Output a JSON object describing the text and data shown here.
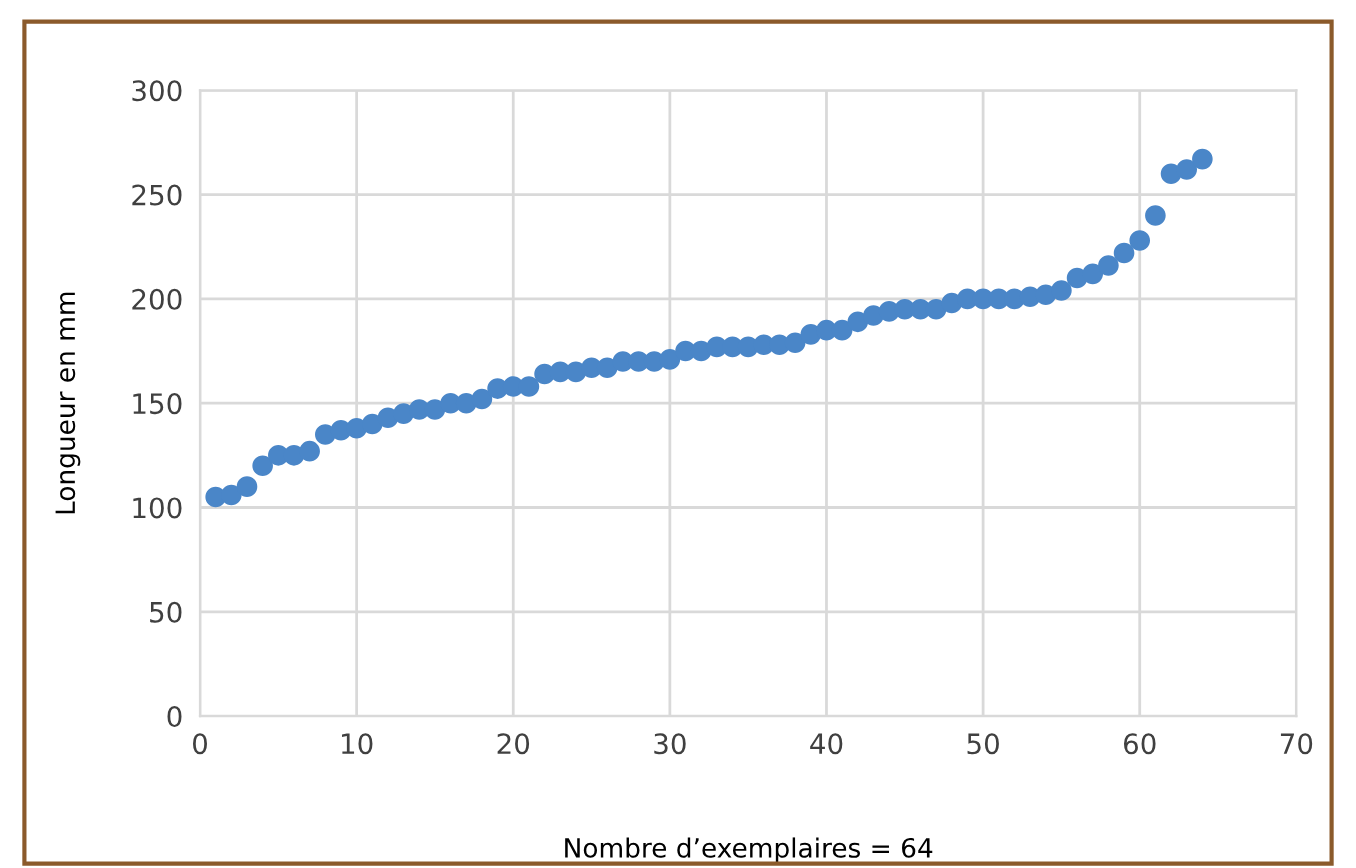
{
  "chart_data": {
    "type": "scatter",
    "xlabel": "Nombre d’exemplaires = 64",
    "ylabel": "Longueur en mm",
    "x": [
      1,
      2,
      3,
      4,
      5,
      6,
      7,
      8,
      9,
      10,
      11,
      12,
      13,
      14,
      15,
      16,
      17,
      18,
      19,
      20,
      21,
      22,
      23,
      24,
      25,
      26,
      27,
      28,
      29,
      30,
      31,
      32,
      33,
      34,
      35,
      36,
      37,
      38,
      39,
      40,
      41,
      42,
      43,
      44,
      45,
      46,
      47,
      48,
      49,
      50,
      51,
      52,
      53,
      54,
      55,
      56,
      57,
      58,
      59,
      60,
      61,
      62,
      63,
      64
    ],
    "values": [
      105,
      106,
      110,
      120,
      125,
      125,
      127,
      135,
      137,
      138,
      140,
      143,
      145,
      147,
      147,
      150,
      150,
      152,
      157,
      158,
      158,
      164,
      165,
      165,
      167,
      167,
      170,
      170,
      170,
      171,
      175,
      175,
      177,
      177,
      177,
      178,
      178,
      179,
      183,
      185,
      185,
      189,
      192,
      194,
      195,
      195,
      195,
      198,
      200,
      200,
      200,
      200,
      201,
      202,
      204,
      210,
      212,
      216,
      222,
      228,
      240,
      260,
      262,
      267
    ],
    "color": "#4a86c8",
    "marker": "circle",
    "xlim": [
      0,
      70
    ],
    "ylim": [
      0,
      300
    ],
    "xticks": [
      0,
      10,
      20,
      30,
      40,
      50,
      60,
      70
    ],
    "yticks": [
      0,
      50,
      100,
      150,
      200,
      250,
      300
    ],
    "grid": true
  }
}
